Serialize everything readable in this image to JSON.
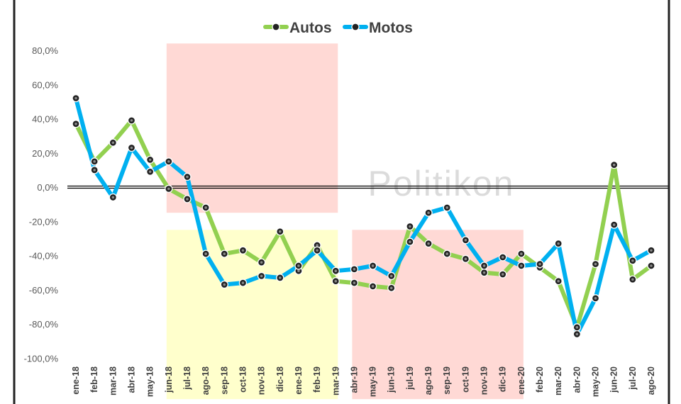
{
  "chart_data": {
    "type": "line",
    "x": [
      "ene-18",
      "feb-18",
      "mar-18",
      "abr-18",
      "may-18",
      "jun-18",
      "jul-18",
      "ago-18",
      "sep-18",
      "oct-18",
      "nov-18",
      "dic-18",
      "ene-19",
      "feb-19",
      "mar-19",
      "abr-19",
      "may-19",
      "jun-19",
      "jul-19",
      "ago-19",
      "sep-19",
      "oct-19",
      "nov-19",
      "dic-19",
      "ene-20",
      "feb-20",
      "mar-20",
      "abr-20",
      "may-20",
      "jun-20",
      "jul-20",
      "ago-20"
    ],
    "series": [
      {
        "name": "Autos",
        "color": "#92d050",
        "values": [
          37,
          15,
          26,
          39,
          16,
          -1,
          -7,
          -12,
          -39,
          -37,
          -44,
          -26,
          -49,
          -34,
          -55,
          -56,
          -58,
          -59,
          -23,
          -33,
          -39,
          -42,
          -50,
          -51,
          -39,
          -47,
          -55,
          -82,
          -45,
          13,
          -54,
          -46
        ]
      },
      {
        "name": "Motos",
        "color": "#00b0f0",
        "values": [
          52,
          10,
          -6,
          23,
          9,
          15,
          6,
          -39,
          -57,
          -56,
          -52,
          -53,
          -46,
          -37,
          -49,
          -48,
          -46,
          -52,
          -32,
          -15,
          -12,
          -31,
          -46,
          -41,
          -46,
          -45,
          -33,
          -86,
          -65,
          -22,
          -43,
          -37
        ]
      }
    ],
    "yticks": [
      "80,0%",
      "60,0%",
      "40,0%",
      "20,0%",
      "0,0%",
      "-20,0%",
      "-40,0%",
      "-60,0%",
      "-80,0%",
      "-100,0%"
    ],
    "ylim": [
      -100,
      80
    ],
    "shaded_regions": [
      {
        "from": "jun-18",
        "to": "mar-19",
        "ymin": -15,
        "ymax": 84,
        "color": "#ffd9d5"
      },
      {
        "from": "jun-18",
        "to": "mar-19",
        "ymin": -124,
        "ymax": -25,
        "color": "#ffffcc"
      },
      {
        "from": "abr-19",
        "to": "ene-20",
        "ymin": -124,
        "ymax": -25,
        "color": "#ffd9d5"
      }
    ],
    "legend": {
      "position": "top-center",
      "entries": [
        "Autos",
        "Motos"
      ]
    },
    "watermark": "Politikon",
    "grid": false,
    "title": "",
    "xlabel": "",
    "ylabel": ""
  }
}
